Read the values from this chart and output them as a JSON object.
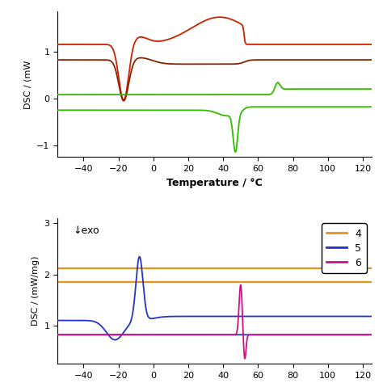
{
  "top_panel": {
    "xlim": [
      -55,
      125
    ],
    "ylim": [
      -1.25,
      1.85
    ],
    "xlabel": "Temperature / °C",
    "ylabel": "DSC / (mW",
    "yticks": [
      -1,
      0,
      1
    ],
    "xticks": [
      -40,
      -20,
      0,
      20,
      40,
      60,
      80,
      100,
      120
    ]
  },
  "bottom_panel": {
    "xlim": [
      -55,
      125
    ],
    "ylim": [
      0.25,
      3.1
    ],
    "ylabel": "DSC / (mW/mg)",
    "yticks": [
      1,
      2,
      3
    ],
    "xticks": [
      -40,
      -20,
      0,
      20,
      40,
      60,
      80,
      100,
      120
    ],
    "exo_label": "↓exo",
    "orange_line1": 2.12,
    "orange_line2": 1.85,
    "legend_labels": [
      "4",
      "5",
      "6"
    ],
    "legend_colors": [
      "#E8941A",
      "#2233CC",
      "#CC1188"
    ]
  },
  "colors": {
    "red1": "#CC2200",
    "red2": "#882200",
    "green": "#33BB00",
    "orange": "#E8941A",
    "blue": "#2233CC",
    "pink": "#CC1188"
  }
}
